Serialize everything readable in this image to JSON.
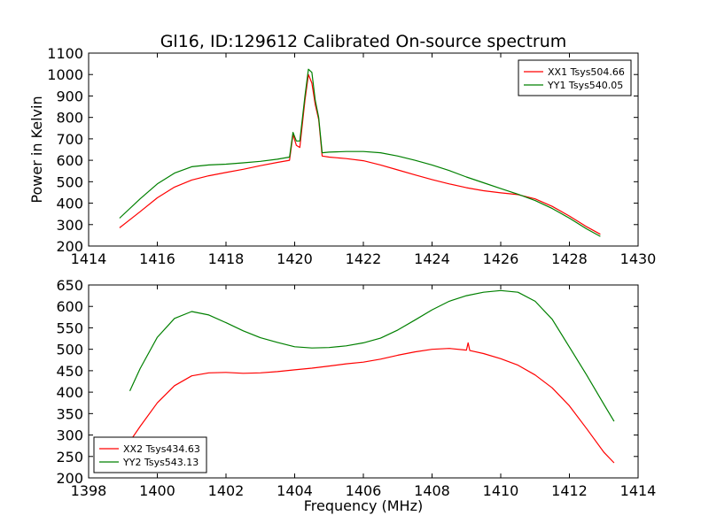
{
  "chart_data": [
    {
      "type": "line",
      "title": "Gl16, ID:129612 Calibrated On-source spectrum",
      "xlabel": "",
      "ylabel": "Power in Kelvin",
      "xlim": [
        1414,
        1430
      ],
      "ylim": [
        200,
        1100
      ],
      "xticks": [
        1414,
        1416,
        1418,
        1420,
        1422,
        1424,
        1426,
        1428,
        1430
      ],
      "yticks": [
        200,
        300,
        400,
        500,
        600,
        700,
        800,
        900,
        1000,
        1100
      ],
      "grid": false,
      "legend": "top-right",
      "series": [
        {
          "name": "XX1 Tsys504.66",
          "color": "#ff0000",
          "x": [
            1414.9,
            1415.5,
            1416,
            1416.5,
            1417,
            1417.5,
            1418,
            1418.5,
            1419,
            1419.5,
            1419.85,
            1419.95,
            1420.05,
            1420.15,
            1420.3,
            1420.4,
            1420.5,
            1420.6,
            1420.7,
            1420.8,
            1421,
            1421.5,
            1422,
            1422.5,
            1423,
            1423.5,
            1424,
            1424.5,
            1425,
            1425.5,
            1426,
            1426.5,
            1427,
            1427.5,
            1428,
            1428.5,
            1428.9
          ],
          "y": [
            285,
            360,
            425,
            475,
            508,
            528,
            543,
            558,
            575,
            590,
            600,
            720,
            670,
            660,
            880,
            1000,
            960,
            860,
            790,
            620,
            615,
            608,
            598,
            578,
            555,
            532,
            510,
            490,
            472,
            458,
            448,
            440,
            420,
            385,
            340,
            290,
            255
          ]
        },
        {
          "name": "YY1 Tsys540.05",
          "color": "#008000",
          "x": [
            1414.9,
            1415.5,
            1416,
            1416.5,
            1417,
            1417.5,
            1418,
            1418.5,
            1419,
            1419.5,
            1419.85,
            1419.95,
            1420.05,
            1420.15,
            1420.3,
            1420.4,
            1420.5,
            1420.6,
            1420.7,
            1420.8,
            1421,
            1421.5,
            1422,
            1422.5,
            1423,
            1423.5,
            1424,
            1424.5,
            1425,
            1425.5,
            1426,
            1426.5,
            1427,
            1427.5,
            1428,
            1428.5,
            1428.9
          ],
          "y": [
            330,
            420,
            490,
            540,
            570,
            578,
            582,
            588,
            595,
            605,
            615,
            730,
            690,
            690,
            900,
            1025,
            1010,
            880,
            800,
            635,
            638,
            641,
            641,
            635,
            620,
            600,
            578,
            552,
            522,
            495,
            468,
            442,
            412,
            375,
            330,
            280,
            245
          ]
        }
      ]
    },
    {
      "type": "line",
      "title": "",
      "xlabel": "Frequency (MHz)",
      "ylabel": "",
      "xlim": [
        1398,
        1414
      ],
      "ylim": [
        200,
        650
      ],
      "xticks": [
        1398,
        1400,
        1402,
        1404,
        1406,
        1408,
        1410,
        1412,
        1414
      ],
      "yticks": [
        200,
        250,
        300,
        350,
        400,
        450,
        500,
        550,
        600,
        650
      ],
      "grid": false,
      "legend": "bottom-left",
      "series": [
        {
          "name": "XX2 Tsys434.63",
          "color": "#ff0000",
          "x": [
            1399.2,
            1399.5,
            1400,
            1400.5,
            1401,
            1401.5,
            1402,
            1402.5,
            1403,
            1403.5,
            1404,
            1404.5,
            1405,
            1405.5,
            1406,
            1406.5,
            1407,
            1407.5,
            1408,
            1408.5,
            1409,
            1409.05,
            1409.1,
            1409.5,
            1410,
            1410.5,
            1411,
            1411.5,
            1412,
            1412.5,
            1413,
            1413.3
          ],
          "y": [
            285,
            320,
            375,
            415,
            438,
            445,
            446,
            444,
            445,
            448,
            452,
            456,
            461,
            466,
            470,
            477,
            486,
            494,
            500,
            502,
            498,
            515,
            497,
            490,
            478,
            463,
            440,
            410,
            368,
            315,
            260,
            235
          ]
        },
        {
          "name": "YY2 Tsys543.13",
          "color": "#008000",
          "x": [
            1399.2,
            1399.5,
            1400,
            1400.5,
            1401,
            1401.5,
            1402,
            1402.5,
            1403,
            1403.5,
            1404,
            1404.5,
            1405,
            1405.5,
            1406,
            1406.5,
            1407,
            1407.5,
            1408,
            1408.5,
            1409,
            1409.5,
            1410,
            1410.5,
            1411,
            1411.5,
            1412,
            1412.5,
            1413,
            1413.3
          ],
          "y": [
            403,
            455,
            528,
            572,
            588,
            580,
            562,
            543,
            527,
            516,
            506,
            503,
            504,
            508,
            515,
            526,
            545,
            568,
            592,
            612,
            625,
            633,
            637,
            633,
            612,
            570,
            505,
            440,
            372,
            332
          ]
        }
      ]
    }
  ]
}
